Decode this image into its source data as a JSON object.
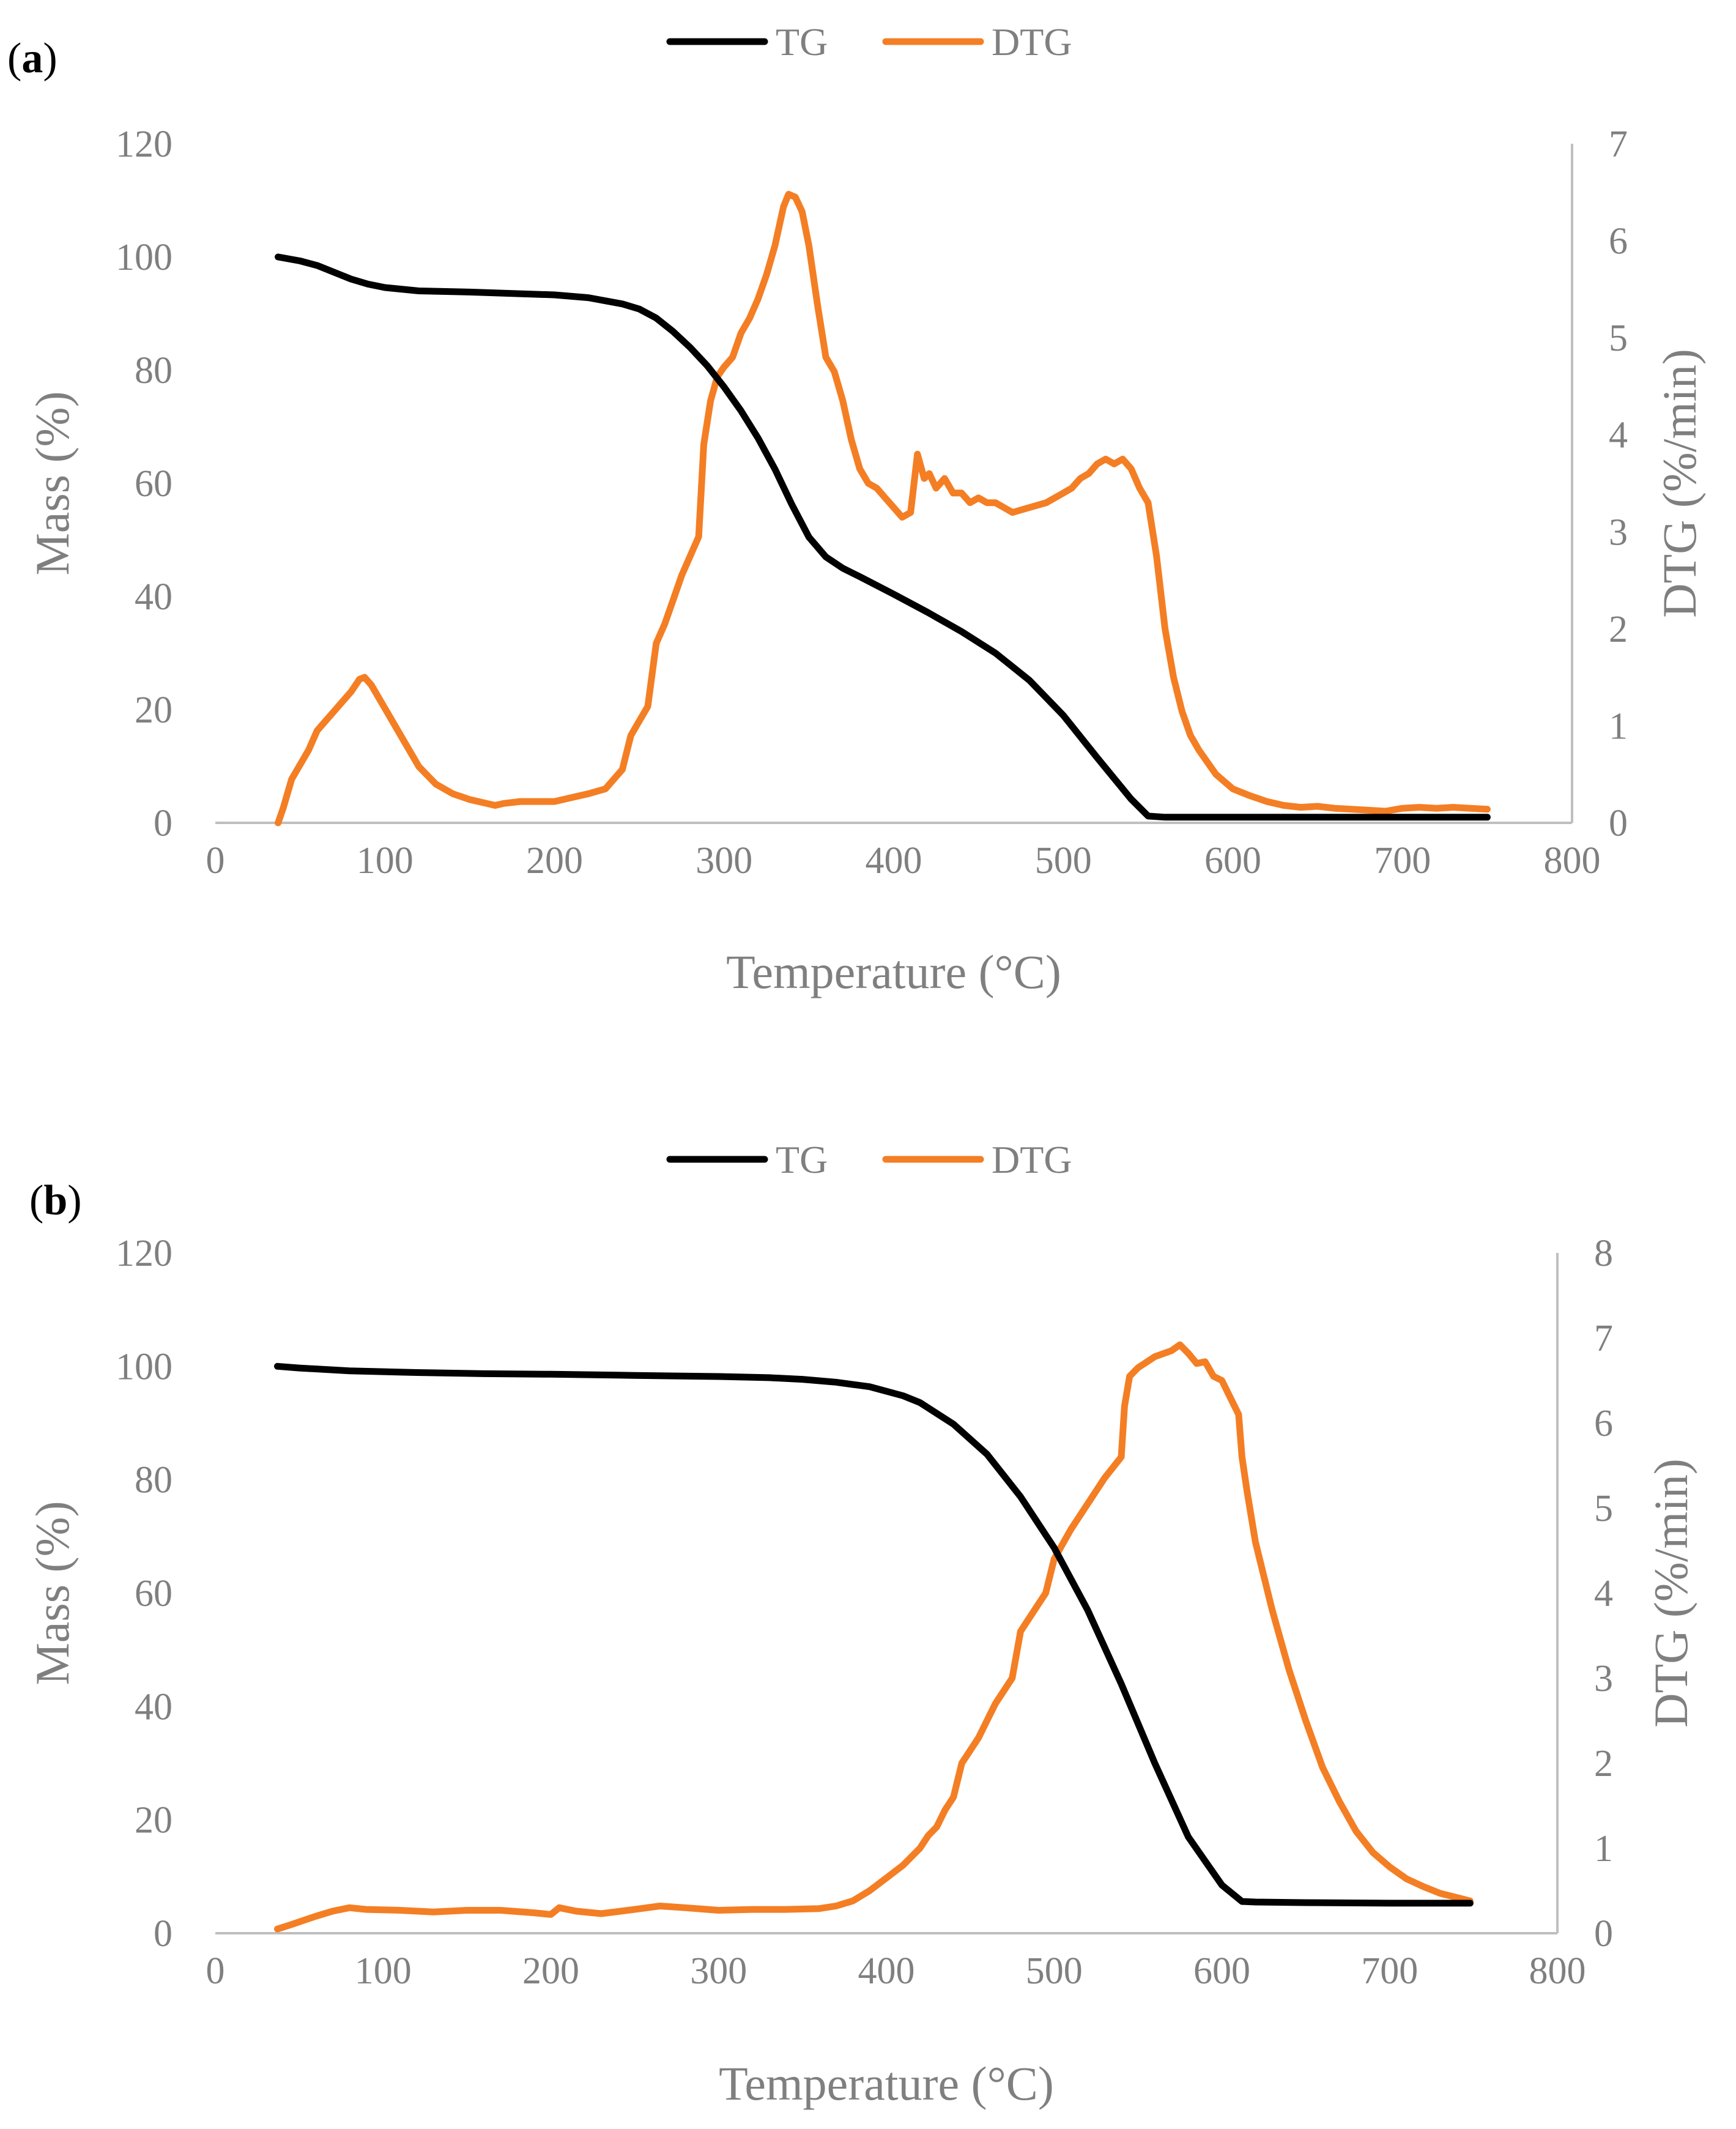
{
  "colors": {
    "tg": "#000000",
    "dtg": "#f47e24",
    "axis": "#bfbfbf",
    "text": "#7f7f7f"
  },
  "chart_data": [
    {
      "type": "line",
      "panel_label": "a",
      "xlabel": "Temperature (°C)",
      "ylabel": "Mass (%)",
      "y2label": "DTG (%/min)",
      "xlim": [
        0,
        800
      ],
      "ylim": [
        0,
        120
      ],
      "y2lim": [
        0,
        7
      ],
      "xticks": [
        "0",
        "100",
        "200",
        "300",
        "400",
        "500",
        "600",
        "700",
        "800"
      ],
      "yticks": [
        "0",
        "20",
        "40",
        "60",
        "80",
        "100",
        "120"
      ],
      "y2ticks": [
        "0",
        "1",
        "2",
        "3",
        "4",
        "5",
        "6",
        "7"
      ],
      "legend": {
        "position": "top-center",
        "tg": "TG",
        "dtg": "DTG"
      },
      "series": [
        {
          "name": "TG",
          "axis": "left",
          "x": [
            37,
            50,
            60,
            70,
            80,
            90,
            100,
            120,
            150,
            200,
            220,
            240,
            250,
            260,
            270,
            280,
            290,
            300,
            310,
            320,
            330,
            340,
            350,
            360,
            370,
            380,
            400,
            420,
            440,
            460,
            480,
            500,
            520,
            540,
            550,
            560,
            600,
            650,
            700,
            750
          ],
          "y": [
            100,
            99.3,
            98.5,
            97.3,
            96.1,
            95.2,
            94.6,
            94.0,
            93.8,
            93.3,
            92.8,
            91.7,
            90.8,
            89.2,
            86.8,
            84.0,
            80.8,
            77.0,
            72.8,
            68.0,
            62.5,
            56.2,
            50.5,
            47.0,
            45.0,
            43.5,
            40.4,
            37.2,
            33.8,
            30.0,
            25.2,
            19.0,
            11.5,
            4.2,
            1.2,
            1.0,
            1.0,
            1.0,
            1.0,
            1.0
          ]
        },
        {
          "name": "DTG",
          "axis": "right",
          "x": [
            37,
            40,
            45,
            50,
            55,
            60,
            65,
            70,
            75,
            80,
            85,
            88,
            92,
            96,
            100,
            110,
            120,
            130,
            140,
            150,
            160,
            165,
            170,
            180,
            190,
            200,
            210,
            220,
            230,
            240,
            245,
            250,
            255,
            260,
            265,
            270,
            275,
            280,
            285,
            288,
            292,
            296,
            300,
            305,
            310,
            315,
            320,
            325,
            330,
            335,
            338,
            342,
            346,
            350,
            355,
            360,
            365,
            370,
            375,
            380,
            385,
            390,
            395,
            400,
            405,
            410,
            414,
            418,
            421,
            425,
            430,
            435,
            440,
            445,
            450,
            455,
            460,
            465,
            470,
            480,
            490,
            500,
            505,
            510,
            515,
            520,
            525,
            530,
            535,
            540,
            545,
            550,
            555,
            560,
            565,
            570,
            575,
            580,
            590,
            600,
            610,
            620,
            630,
            640,
            650,
            660,
            670,
            680,
            690,
            700,
            710,
            720,
            730,
            740,
            750
          ],
          "y": [
            0.0,
            0.15,
            0.45,
            0.6,
            0.75,
            0.95,
            1.05,
            1.15,
            1.25,
            1.35,
            1.48,
            1.5,
            1.42,
            1.3,
            1.18,
            0.88,
            0.58,
            0.4,
            0.3,
            0.24,
            0.2,
            0.18,
            0.2,
            0.22,
            0.22,
            0.22,
            0.26,
            0.3,
            0.35,
            0.55,
            0.9,
            1.05,
            1.2,
            1.85,
            2.05,
            2.3,
            2.55,
            2.75,
            2.95,
            3.9,
            4.35,
            4.6,
            4.7,
            4.8,
            5.05,
            5.2,
            5.4,
            5.65,
            5.95,
            6.35,
            6.48,
            6.45,
            6.3,
            5.95,
            5.35,
            4.8,
            4.65,
            4.35,
            3.95,
            3.65,
            3.5,
            3.45,
            3.35,
            3.25,
            3.15,
            3.2,
            3.8,
            3.55,
            3.6,
            3.45,
            3.55,
            3.4,
            3.4,
            3.3,
            3.35,
            3.3,
            3.3,
            3.25,
            3.2,
            3.25,
            3.3,
            3.4,
            3.45,
            3.55,
            3.6,
            3.7,
            3.75,
            3.7,
            3.75,
            3.65,
            3.45,
            3.3,
            2.75,
            2.0,
            1.5,
            1.15,
            0.9,
            0.75,
            0.5,
            0.35,
            0.28,
            0.22,
            0.18,
            0.16,
            0.17,
            0.15,
            0.14,
            0.13,
            0.12,
            0.15,
            0.16,
            0.15,
            0.16,
            0.15,
            0.14
          ]
        }
      ]
    },
    {
      "type": "line",
      "panel_label": "b",
      "xlabel": "Temperature (°C)",
      "ylabel": "Mass (%)",
      "y2label": "DTG (%/min)",
      "xlim": [
        0,
        800
      ],
      "ylim": [
        0,
        120
      ],
      "y2lim": [
        0,
        8
      ],
      "xticks": [
        "0",
        "100",
        "200",
        "300",
        "400",
        "500",
        "600",
        "700",
        "800"
      ],
      "yticks": [
        "0",
        "20",
        "40",
        "60",
        "80",
        "100",
        "120"
      ],
      "y2ticks": [
        "0",
        "1",
        "2",
        "3",
        "4",
        "5",
        "6",
        "7",
        "8"
      ],
      "legend": {
        "position": "top-center",
        "tg": "TG",
        "dtg": "DTG"
      },
      "series": [
        {
          "name": "TG",
          "axis": "left",
          "x": [
            37,
            50,
            80,
            120,
            160,
            200,
            250,
            300,
            330,
            350,
            370,
            390,
            410,
            420,
            440,
            460,
            480,
            500,
            520,
            540,
            560,
            580,
            600,
            612,
            620,
            650,
            700,
            748
          ],
          "y": [
            100,
            99.7,
            99.2,
            98.9,
            98.7,
            98.6,
            98.4,
            98.2,
            98.0,
            97.7,
            97.2,
            96.4,
            94.8,
            93.6,
            89.8,
            84.5,
            77.0,
            68.0,
            57.0,
            44.0,
            30.0,
            17.0,
            8.5,
            5.6,
            5.5,
            5.4,
            5.3,
            5.3
          ]
        },
        {
          "name": "DTG",
          "axis": "right",
          "x": [
            37,
            45,
            60,
            70,
            80,
            90,
            110,
            130,
            150,
            170,
            190,
            200,
            205,
            215,
            230,
            250,
            265,
            280,
            300,
            320,
            340,
            360,
            370,
            380,
            390,
            400,
            410,
            420,
            425,
            430,
            435,
            440,
            445,
            450,
            455,
            460,
            465,
            470,
            475,
            480,
            485,
            490,
            495,
            500,
            510,
            520,
            530,
            540,
            542,
            545,
            550,
            560,
            570,
            575,
            580,
            585,
            590,
            595,
            600,
            605,
            610,
            612,
            615,
            620,
            630,
            640,
            650,
            660,
            670,
            680,
            690,
            700,
            710,
            720,
            730,
            740,
            748
          ],
          "y": [
            0.05,
            0.1,
            0.2,
            0.26,
            0.3,
            0.28,
            0.27,
            0.25,
            0.27,
            0.27,
            0.24,
            0.22,
            0.3,
            0.26,
            0.23,
            0.28,
            0.32,
            0.3,
            0.27,
            0.28,
            0.28,
            0.29,
            0.32,
            0.38,
            0.5,
            0.65,
            0.8,
            1.0,
            1.15,
            1.25,
            1.45,
            1.6,
            2.0,
            2.15,
            2.3,
            2.5,
            2.7,
            2.85,
            3.0,
            3.55,
            3.7,
            3.85,
            4.0,
            4.4,
            4.75,
            5.05,
            5.35,
            5.6,
            6.2,
            6.55,
            6.65,
            6.78,
            6.85,
            6.92,
            6.82,
            6.7,
            6.72,
            6.55,
            6.5,
            6.3,
            6.1,
            5.6,
            5.2,
            4.6,
            3.8,
            3.1,
            2.5,
            1.95,
            1.55,
            1.2,
            0.95,
            0.78,
            0.64,
            0.55,
            0.47,
            0.42,
            0.38
          ]
        }
      ]
    }
  ]
}
